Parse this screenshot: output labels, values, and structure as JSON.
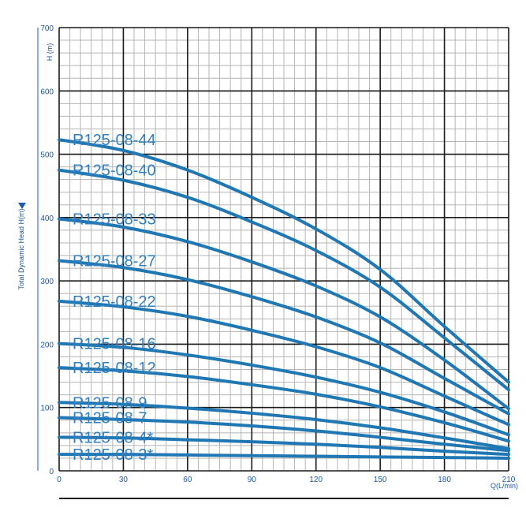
{
  "chart_data": {
    "type": "line",
    "title": "",
    "xlabel": "Q(L/min)",
    "ylabel": "Total Dynamic Head H(m)",
    "ylabel_top": "H (m)",
    "xlim": [
      0,
      210
    ],
    "ylim": [
      0,
      700
    ],
    "x_ticks": [
      0,
      30,
      60,
      90,
      120,
      150,
      180,
      210
    ],
    "y_ticks": [
      0,
      100,
      200,
      300,
      400,
      500,
      600,
      700
    ],
    "grid": true,
    "colors": {
      "curve": "#1f77b4",
      "label": "#2f7fc1",
      "axis_text": "#1a5aa8",
      "grid": "#1a1a1a"
    },
    "series": [
      {
        "name": "R125-08-44",
        "x": [
          0,
          30,
          60,
          90,
          120,
          150,
          180,
          210
        ],
        "y": [
          523,
          506,
          475,
          432,
          382,
          318,
          228,
          140
        ]
      },
      {
        "name": "R125-08-40",
        "x": [
          0,
          30,
          60,
          90,
          120,
          150,
          180,
          210
        ],
        "y": [
          475,
          459,
          432,
          393,
          348,
          290,
          210,
          128
        ]
      },
      {
        "name": "R125-08-33",
        "x": [
          0,
          30,
          60,
          90,
          120,
          150,
          180,
          210
        ],
        "y": [
          398,
          385,
          362,
          330,
          292,
          243,
          175,
          98
        ]
      },
      {
        "name": "R125-08-27",
        "x": [
          0,
          30,
          60,
          90,
          120,
          150,
          180,
          210
        ],
        "y": [
          332,
          321,
          302,
          275,
          243,
          202,
          146,
          90
        ]
      },
      {
        "name": "R125-08-22",
        "x": [
          0,
          30,
          60,
          90,
          120,
          150,
          180,
          210
        ],
        "y": [
          268,
          259,
          244,
          222,
          196,
          163,
          118,
          73
        ]
      },
      {
        "name": "R125-08-16",
        "x": [
          0,
          30,
          60,
          90,
          120,
          150,
          180,
          210
        ],
        "y": [
          201,
          195,
          183,
          167,
          148,
          124,
          93,
          57
        ]
      },
      {
        "name": "R125-08-12",
        "x": [
          0,
          30,
          60,
          90,
          120,
          150,
          180,
          210
        ],
        "y": [
          163,
          158,
          149,
          136,
          121,
          101,
          76,
          47
        ]
      },
      {
        "name": "R125-08-9",
        "x": [
          0,
          30,
          60,
          90,
          120,
          150,
          180,
          210
        ],
        "y": [
          108,
          105,
          99,
          91,
          81,
          68,
          52,
          35
        ]
      },
      {
        "name": "R125-08-7",
        "x": [
          0,
          30,
          60,
          90,
          120,
          150,
          180,
          210
        ],
        "y": [
          84,
          81,
          77,
          71,
          63,
          53,
          42,
          32
        ]
      },
      {
        "name": "R125-08-4*",
        "x": [
          0,
          30,
          60,
          90,
          120,
          150,
          180,
          210
        ],
        "y": [
          53,
          52,
          49,
          46,
          42,
          37,
          31,
          26
        ]
      },
      {
        "name": "R125-08-3*",
        "x": [
          0,
          30,
          60,
          90,
          120,
          150,
          180,
          210
        ],
        "y": [
          26,
          26,
          25,
          24,
          23,
          22,
          21,
          20
        ]
      }
    ]
  }
}
